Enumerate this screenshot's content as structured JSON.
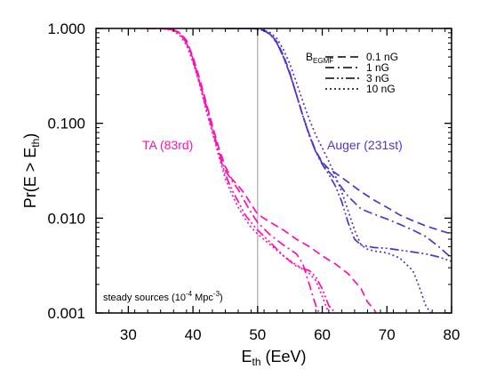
{
  "chart_data": {
    "type": "line",
    "xlabel": {
      "main": "E",
      "sub": "th",
      "unit": " (EeV)"
    },
    "ylabel": {
      "pre": "Pr(E > E",
      "sub": "th",
      "post": ")"
    },
    "xlim": [
      25,
      80
    ],
    "ylim": [
      0.001,
      1.0
    ],
    "yscale": "log",
    "x_ticks": [
      30,
      40,
      50,
      60,
      70,
      80
    ],
    "y_ticks": [
      1.0,
      0.1,
      0.01,
      0.001
    ],
    "y_tick_labels": [
      "1.000",
      "0.100",
      "0.010",
      "0.001"
    ],
    "grid": false,
    "vline": {
      "x": 50,
      "color": "#b0b0b0"
    },
    "colors": {
      "TA": "#ff10b4",
      "Auger": "#5533c8"
    },
    "legend": {
      "title": "B",
      "title_sub": "EGMF",
      "placement": "top-right",
      "entries": [
        {
          "label": "0.1  nG",
          "dash": "dashed"
        },
        {
          "label": "1  nG",
          "dash": "dashdot"
        },
        {
          "label": "3  nG",
          "dash": "dashdotdot"
        },
        {
          "label": "10  nG",
          "dash": "dotted"
        }
      ]
    },
    "annotations": [
      {
        "text": "TA (83rd)",
        "group": "TA"
      },
      {
        "text": "Auger (231st)",
        "group": "Auger"
      }
    ],
    "note": {
      "pre": "steady sources (10",
      "sup": "-4",
      "post": " Mpc",
      "sup2": "-3",
      "end": ")"
    },
    "series": [
      {
        "group": "TA",
        "dash": "dashed",
        "x": [
          33,
          35,
          36,
          37,
          38,
          39,
          40,
          41,
          42,
          43,
          44,
          45,
          46,
          47,
          48,
          49,
          50,
          52,
          54,
          56,
          58,
          60,
          62,
          64,
          66,
          67,
          68,
          68.3
        ],
        "y": [
          1.0,
          1.0,
          0.99,
          0.97,
          0.9,
          0.75,
          0.5,
          0.3,
          0.17,
          0.095,
          0.055,
          0.035,
          0.026,
          0.022,
          0.018,
          0.014,
          0.011,
          0.009,
          0.0075,
          0.006,
          0.005,
          0.004,
          0.0033,
          0.0026,
          0.0018,
          0.0013,
          0.0011,
          0.001
        ]
      },
      {
        "group": "TA",
        "dash": "dashdot",
        "x": [
          33,
          35,
          36,
          37,
          38,
          39,
          40,
          41,
          42,
          43,
          44,
          45,
          46,
          47,
          48,
          49,
          50,
          52,
          54,
          56,
          57,
          58,
          59,
          59.5
        ],
        "y": [
          1.0,
          1.0,
          0.99,
          0.97,
          0.88,
          0.72,
          0.48,
          0.28,
          0.16,
          0.09,
          0.05,
          0.032,
          0.025,
          0.02,
          0.015,
          0.0115,
          0.009,
          0.0066,
          0.0052,
          0.0042,
          0.0033,
          0.002,
          0.0012,
          0.001
        ]
      },
      {
        "group": "TA",
        "dash": "dashdotdot",
        "x": [
          33,
          35,
          36,
          37,
          38,
          39,
          40,
          41,
          42,
          43,
          44,
          45,
          46,
          47,
          48,
          49,
          50,
          52,
          54,
          56,
          58,
          59,
          60,
          61,
          62
        ],
        "y": [
          1.0,
          1.0,
          0.99,
          0.96,
          0.88,
          0.7,
          0.46,
          0.27,
          0.15,
          0.085,
          0.048,
          0.029,
          0.02,
          0.015,
          0.011,
          0.009,
          0.0075,
          0.0055,
          0.004,
          0.0031,
          0.0028,
          0.0024,
          0.0018,
          0.0012,
          0.001
        ]
      },
      {
        "group": "TA",
        "dash": "dotted",
        "x": [
          32,
          34,
          36,
          37,
          38,
          39,
          40,
          41,
          42,
          43,
          44,
          45,
          46,
          47,
          48,
          49,
          50,
          52,
          54,
          56,
          58,
          59,
          60,
          61
        ],
        "y": [
          1.0,
          1.0,
          0.98,
          0.94,
          0.84,
          0.67,
          0.44,
          0.26,
          0.14,
          0.08,
          0.045,
          0.026,
          0.018,
          0.013,
          0.01,
          0.008,
          0.0068,
          0.0052,
          0.004,
          0.0032,
          0.0026,
          0.0022,
          0.0015,
          0.001
        ]
      },
      {
        "group": "Auger",
        "dash": "dashed",
        "x": [
          45,
          48,
          49,
          50,
          51,
          52,
          53,
          54,
          55,
          56,
          57,
          58,
          59,
          60,
          61,
          62,
          64,
          66,
          68,
          70,
          72,
          74,
          76,
          78,
          80
        ],
        "y": [
          1.0,
          1.0,
          1.0,
          0.99,
          0.95,
          0.87,
          0.72,
          0.52,
          0.34,
          0.2,
          0.12,
          0.076,
          0.051,
          0.039,
          0.033,
          0.03,
          0.024,
          0.019,
          0.0155,
          0.013,
          0.0108,
          0.0094,
          0.0083,
          0.0075,
          0.0068
        ]
      },
      {
        "group": "Auger",
        "dash": "dashdot",
        "x": [
          45,
          48,
          49,
          50,
          51,
          52,
          53,
          54,
          55,
          56,
          57,
          58,
          59,
          60,
          61,
          62,
          63,
          64,
          66,
          68,
          70,
          72,
          74,
          76,
          78,
          80
        ],
        "y": [
          1.0,
          1.0,
          1.0,
          0.99,
          0.95,
          0.86,
          0.7,
          0.5,
          0.33,
          0.2,
          0.12,
          0.075,
          0.05,
          0.038,
          0.031,
          0.026,
          0.021,
          0.017,
          0.0125,
          0.011,
          0.0098,
          0.0086,
          0.0075,
          0.0064,
          0.005,
          0.0038
        ]
      },
      {
        "group": "Auger",
        "dash": "dashdotdot",
        "x": [
          45,
          48,
          49,
          50,
          51,
          52,
          53,
          54,
          55,
          56,
          57,
          58,
          59,
          60,
          61,
          62,
          63,
          64,
          65,
          66,
          68,
          70,
          72,
          74,
          76,
          78,
          80
        ],
        "y": [
          1.0,
          1.0,
          1.0,
          0.99,
          0.95,
          0.86,
          0.7,
          0.5,
          0.33,
          0.2,
          0.12,
          0.074,
          0.05,
          0.037,
          0.029,
          0.022,
          0.015,
          0.009,
          0.006,
          0.0052,
          0.0049,
          0.0048,
          0.0046,
          0.0044,
          0.0042,
          0.0039,
          0.0035
        ]
      },
      {
        "group": "Auger",
        "dash": "dotted",
        "x": [
          45,
          48,
          49,
          50,
          51,
          52,
          53,
          54,
          55,
          56,
          57,
          58,
          59,
          60,
          61,
          62,
          63,
          64,
          65,
          66,
          67,
          68,
          70,
          72,
          74,
          75,
          76,
          76.8
        ],
        "y": [
          1.0,
          1.0,
          1.0,
          0.99,
          0.96,
          0.9,
          0.78,
          0.6,
          0.42,
          0.27,
          0.17,
          0.11,
          0.075,
          0.055,
          0.04,
          0.028,
          0.019,
          0.012,
          0.0075,
          0.0052,
          0.0047,
          0.0045,
          0.0043,
          0.0038,
          0.0028,
          0.0019,
          0.0012,
          0.001
        ]
      }
    ]
  }
}
